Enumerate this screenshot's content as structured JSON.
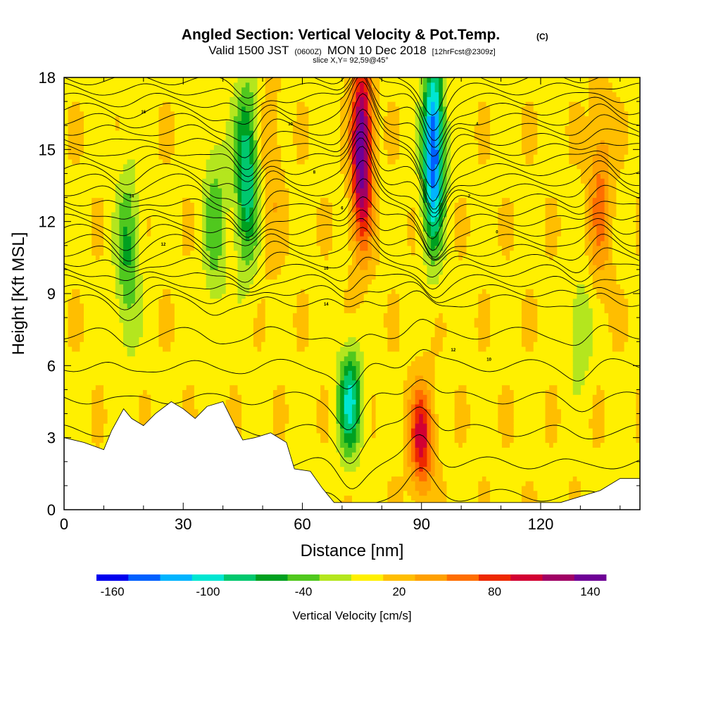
{
  "chart_data": {
    "type": "heatmap",
    "title": "Angled Section: Vertical Velocity & Pot.Temp.",
    "title_mark": "(C)",
    "subtitle_prefix": "Valid 1500 JST",
    "subtitle_utc": "(0600Z)",
    "subtitle_date": "MON 10 Dec 2018",
    "subtitle_run": "[12hrFcst@2309z]",
    "slice_info": "slice X,Y= 92,59@45°",
    "xlabel": "Distance [nm]",
    "ylabel": "Height [Kft MSL]",
    "xlim": [
      0,
      145
    ],
    "ylim": [
      0,
      18
    ],
    "xticks": [
      "0",
      "30",
      "60",
      "90",
      "120"
    ],
    "xtick_values": [
      0,
      30,
      60,
      90,
      120
    ],
    "yticks": [
      "0",
      "3",
      "6",
      "9",
      "12",
      "15",
      "18"
    ],
    "ytick_values": [
      0,
      3,
      6,
      9,
      12,
      15,
      18
    ],
    "colorbar": {
      "title": "Vertical Velocity [cm/s]",
      "min": -170,
      "max": 150,
      "colors": [
        "#0000ee",
        "#0060ff",
        "#00b4ff",
        "#00e6d2",
        "#00c86e",
        "#00a020",
        "#50c81e",
        "#b4e61e",
        "#fff000",
        "#ffbe00",
        "#ffa000",
        "#ff6e00",
        "#ee2800",
        "#d20032",
        "#a00064",
        "#6e0096"
      ],
      "tick_labels": [
        "-160",
        "-100",
        "-40",
        "20",
        "80",
        "140"
      ],
      "tick_values": [
        -160,
        -100,
        -40,
        20,
        80,
        140
      ]
    },
    "updrafts_cm_s": [
      {
        "distance_nm": 75,
        "height_kft": 15.0,
        "value": 150
      },
      {
        "distance_nm": 90,
        "height_kft": 3.0,
        "value": 95
      },
      {
        "distance_nm": 52,
        "height_kft": 14.0,
        "value": 25
      },
      {
        "distance_nm": 135,
        "height_kft": 13.0,
        "value": 50
      }
    ],
    "downdrafts_cm_s": [
      {
        "distance_nm": 93,
        "height_kft": 15.0,
        "value": -160
      },
      {
        "distance_nm": 72,
        "height_kft": 4.5,
        "value": -100
      },
      {
        "distance_nm": 46,
        "height_kft": 14.0,
        "value": -95
      },
      {
        "distance_nm": 16,
        "height_kft": 10.5,
        "value": -55
      },
      {
        "distance_nm": 38,
        "height_kft": 12.0,
        "value": -45
      },
      {
        "distance_nm": 130,
        "height_kft": 7.5,
        "value": -40
      }
    ],
    "terrain_profile": {
      "distance_nm": [
        0,
        5,
        10,
        12,
        15,
        17,
        20,
        23,
        27,
        30,
        33,
        36,
        40,
        43,
        45,
        48,
        52,
        56,
        58,
        62,
        65,
        68,
        72,
        80,
        90,
        100,
        110,
        115,
        118,
        125,
        135,
        140,
        145
      ],
      "height_kft": [
        3.0,
        2.8,
        2.5,
        3.3,
        4.2,
        3.8,
        3.5,
        4.0,
        4.5,
        4.2,
        3.8,
        4.3,
        4.5,
        3.5,
        2.9,
        3.0,
        3.2,
        2.8,
        1.7,
        1.6,
        0.9,
        0.3,
        0.3,
        0.3,
        0.3,
        0.3,
        0.3,
        0.3,
        0.3,
        0.3,
        0.8,
        1.3,
        1.3
      ]
    },
    "contour_labels": [
      "16",
      "14",
      "12",
      "10",
      "8",
      "6",
      "4",
      "2",
      "0"
    ],
    "grid": false
  }
}
